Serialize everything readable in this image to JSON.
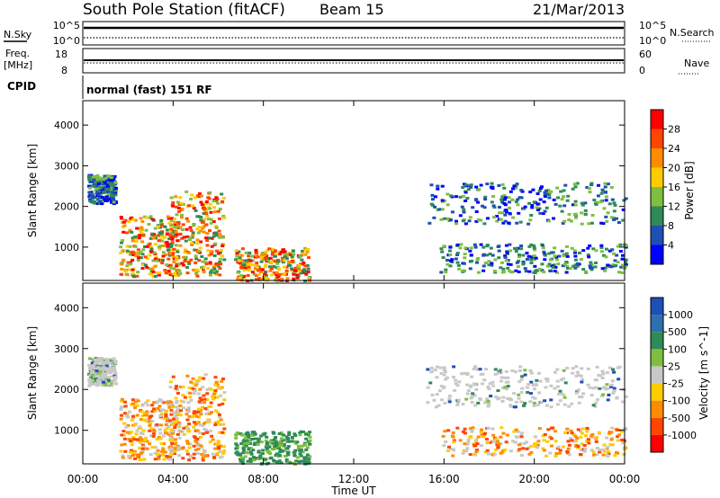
{
  "header": {
    "title": "South Pole Station (fitACF)",
    "beam": "Beam 15",
    "date": "21/Mar/2013"
  },
  "panels": {
    "nsky_label": "N.Sky",
    "nsky_max": "10^5",
    "nsky_min": "10^0",
    "nsearch_label": "N.Search",
    "nsearch_max": "10^5",
    "nsearch_min": "10^0",
    "freq_label": "Freq.",
    "freq_unit": "[MHz]",
    "freq_max": "18",
    "freq_min": "8",
    "nave_label": "Nave",
    "nave_max": "60",
    "nave_min": "0",
    "cpid_label": "CPID",
    "cpid_value": "normal (fast) 151 RF"
  },
  "chart_data": [
    {
      "type": "heatmap",
      "name": "Power",
      "ylabel": "Slant Range [km]",
      "yticks": [
        1000,
        2000,
        3000,
        4000
      ],
      "ylim": [
        180,
        4600
      ],
      "xlim": [
        0,
        24
      ],
      "xticks": [
        "00:00",
        "04:00",
        "08:00",
        "12:00",
        "16:00",
        "20:00",
        "00:00"
      ],
      "xlabel": "Time UT",
      "colorbar_label": "Power [dB]",
      "colorbar_ticks": [
        "4",
        "8",
        "12",
        "16",
        "20",
        "24",
        "28"
      ],
      "colorbar_colors": [
        "#0000ff",
        "#1e4fb4",
        "#2e8b57",
        "#7fbf3f",
        "#ffcc00",
        "#ff8c00",
        "#ff4500",
        "#ff0000"
      ],
      "regions": [
        {
          "t0": 0.2,
          "t1": 1.4,
          "r0": 2100,
          "r1": 2800
        },
        {
          "t0": 1.6,
          "t1": 4.2,
          "r0": 300,
          "r1": 1800
        },
        {
          "t0": 3.8,
          "t1": 6.2,
          "r0": 300,
          "r1": 2400
        },
        {
          "t0": 6.7,
          "t1": 10.0,
          "r0": 200,
          "r1": 1000
        },
        {
          "t0": 15.2,
          "t1": 24.0,
          "r0": 1600,
          "r1": 2600
        },
        {
          "t0": 15.8,
          "t1": 24.0,
          "r0": 400,
          "r1": 1100
        }
      ]
    },
    {
      "type": "heatmap",
      "name": "Velocity",
      "ylabel": "Slant Range [km]",
      "yticks": [
        1000,
        2000,
        3000,
        4000
      ],
      "ylim": [
        180,
        4600
      ],
      "xlim": [
        0,
        24
      ],
      "xticks": [
        "00:00",
        "04:00",
        "08:00",
        "12:00",
        "16:00",
        "20:00",
        "00:00"
      ],
      "xlabel": "Time UT",
      "colorbar_label": "Velocity [m s^-1]",
      "colorbar_ticks": [
        "1000",
        "500",
        "100",
        "25",
        "-25",
        "-100",
        "-500",
        "-1000"
      ],
      "colorbar_colors": [
        "#1e4fb4",
        "#2e6fb0",
        "#2e8b57",
        "#7fbf3f",
        "#c8c8c8",
        "#ffcc00",
        "#ff8c00",
        "#ff4500",
        "#ff0000"
      ],
      "regions": [
        {
          "t0": 0.2,
          "t1": 1.4,
          "r0": 2100,
          "r1": 2800
        },
        {
          "t0": 1.6,
          "t1": 4.2,
          "r0": 300,
          "r1": 1800
        },
        {
          "t0": 3.8,
          "t1": 6.2,
          "r0": 300,
          "r1": 2400
        },
        {
          "t0": 6.7,
          "t1": 10.0,
          "r0": 200,
          "r1": 1000
        },
        {
          "t0": 15.2,
          "t1": 24.0,
          "r0": 1600,
          "r1": 2600
        },
        {
          "t0": 15.8,
          "t1": 24.0,
          "r0": 400,
          "r1": 1100
        }
      ]
    }
  ]
}
